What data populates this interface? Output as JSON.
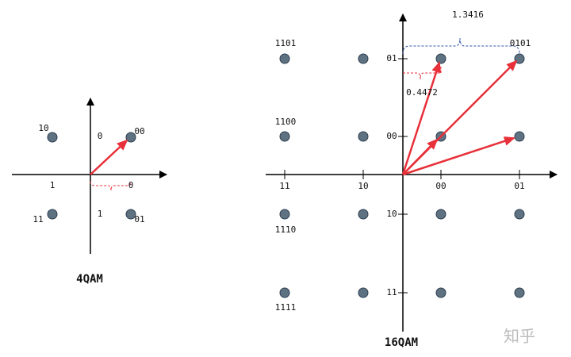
{
  "diagrams": [
    {
      "title": "4QAM",
      "point_labels": [
        "10",
        "00",
        "11",
        "01"
      ],
      "axis_labels": [
        "0",
        "1",
        "0",
        "1"
      ]
    },
    {
      "title": "16QAM",
      "point_labels": [
        "1101",
        "1100",
        "1110",
        "1111",
        "0101"
      ],
      "x_axis_labels": [
        "11",
        "10",
        "00",
        "01"
      ],
      "y_axis_labels": [
        "01",
        "00",
        "10",
        "11"
      ],
      "annotations": [
        "1.3416",
        "0.4472"
      ]
    }
  ],
  "watermark": "知乎"
}
